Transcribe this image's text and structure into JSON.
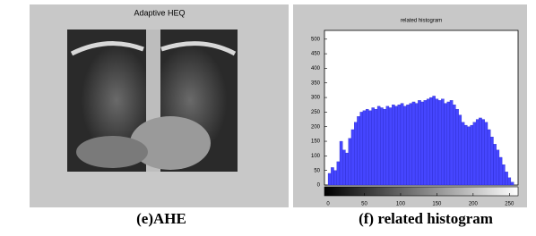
{
  "left_panel": {
    "title": "Adaptive HEQ",
    "caption": "(e)AHE"
  },
  "right_panel": {
    "caption": "(f) related histogram"
  },
  "chart_data": {
    "type": "histogram",
    "title": "related histogram",
    "color": "#4646ff",
    "bins": [
      0,
      4,
      8,
      12,
      16,
      20,
      24,
      28,
      32,
      36,
      40,
      44,
      48,
      52,
      56,
      60,
      64,
      68,
      72,
      76,
      80,
      84,
      88,
      92,
      96,
      100,
      104,
      108,
      112,
      116,
      120,
      124,
      128,
      132,
      136,
      140,
      144,
      148,
      152,
      156,
      160,
      164,
      168,
      172,
      176,
      180,
      184,
      188,
      192,
      196,
      200,
      204,
      208,
      212,
      216,
      220,
      224,
      228,
      232,
      236,
      240,
      244,
      248,
      252,
      256
    ],
    "values": [
      40,
      60,
      50,
      80,
      150,
      120,
      110,
      160,
      190,
      215,
      235,
      250,
      255,
      260,
      255,
      265,
      260,
      270,
      265,
      260,
      270,
      265,
      275,
      270,
      275,
      280,
      270,
      275,
      280,
      285,
      280,
      290,
      285,
      290,
      295,
      300,
      305,
      295,
      290,
      295,
      280,
      285,
      290,
      275,
      260,
      240,
      215,
      205,
      200,
      205,
      215,
      225,
      230,
      225,
      215,
      190,
      165,
      140,
      120,
      95,
      70,
      45,
      25,
      10
    ],
    "xlim": [
      -5,
      262
    ],
    "ylim": [
      0,
      530
    ],
    "xticks": [
      0,
      50,
      100,
      150,
      200,
      250
    ],
    "yticks": [
      0,
      50,
      100,
      150,
      200,
      250,
      300,
      350,
      400,
      450,
      500
    ]
  }
}
